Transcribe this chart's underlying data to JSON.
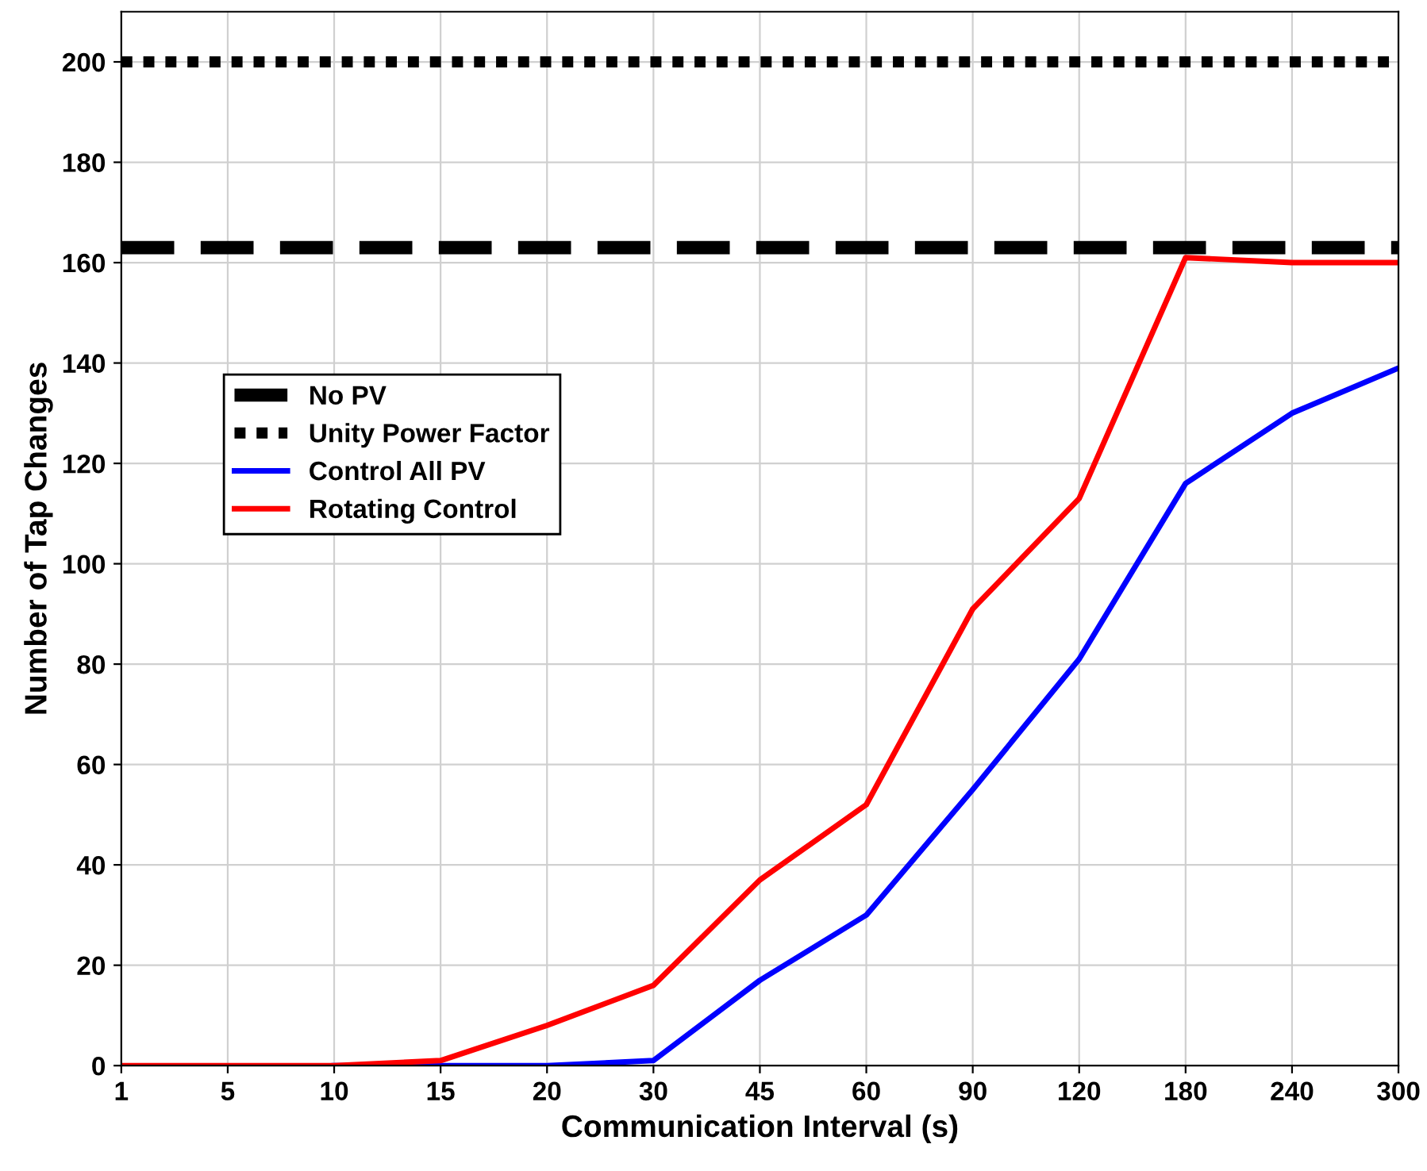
{
  "chart_data": {
    "type": "line",
    "xlabel": "Communication Interval (s)",
    "ylabel": "Number of Tap Changes",
    "categories": [
      "1",
      "5",
      "10",
      "15",
      "20",
      "30",
      "45",
      "60",
      "90",
      "120",
      "180",
      "240",
      "300"
    ],
    "series": [
      {
        "name": "No PV",
        "color": "#000000",
        "line_style": "dashed",
        "values": [
          163,
          163,
          163,
          163,
          163,
          163,
          163,
          163,
          163,
          163,
          163,
          163,
          163
        ]
      },
      {
        "name": "Unity Power Factor",
        "color": "#000000",
        "line_style": "dotted",
        "values": [
          200,
          200,
          200,
          200,
          200,
          200,
          200,
          200,
          200,
          200,
          200,
          200,
          200
        ]
      },
      {
        "name": "Control All PV",
        "color": "#0000ff",
        "line_style": "solid",
        "values": [
          null,
          null,
          0,
          0,
          0,
          1,
          17,
          30,
          55,
          81,
          116,
          130,
          139
        ]
      },
      {
        "name": "Rotating Control",
        "color": "#ff0000",
        "line_style": "solid",
        "values": [
          0,
          0,
          0,
          1,
          8,
          16,
          37,
          52,
          91,
          113,
          161,
          160,
          160
        ]
      }
    ],
    "ylim": [
      0,
      210
    ],
    "yticks": [
      0,
      20,
      40,
      60,
      80,
      100,
      120,
      140,
      160,
      180,
      200
    ],
    "grid": true,
    "legend": "left",
    "marker": "none"
  }
}
